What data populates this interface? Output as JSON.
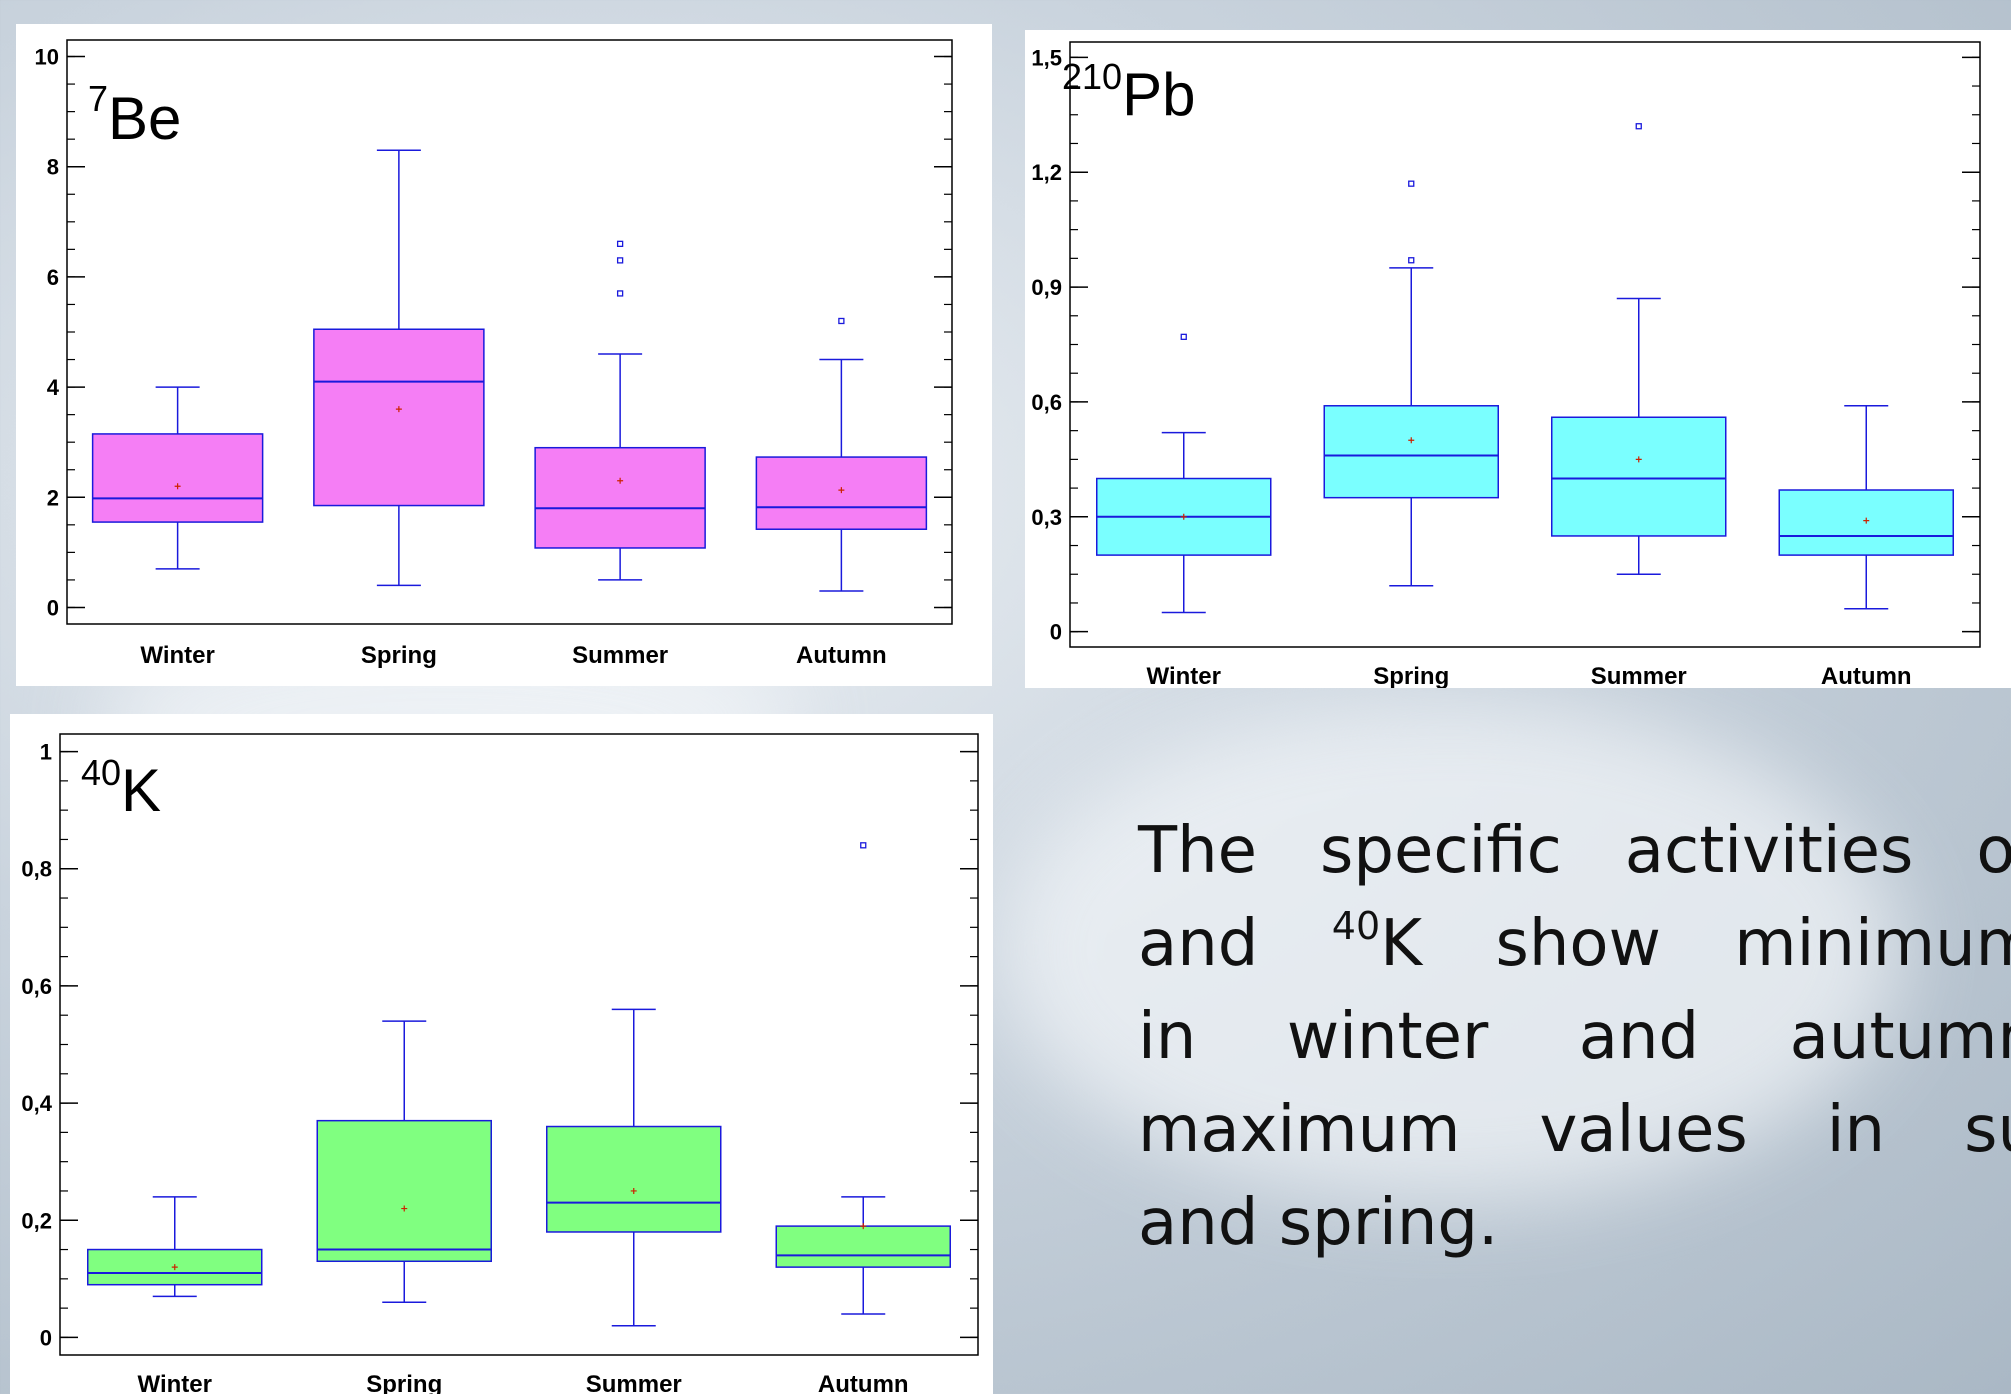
{
  "chart_data": [
    {
      "type": "boxplot",
      "panel": "be7",
      "isotope": {
        "mass": "7",
        "symbol": "Be"
      },
      "categories": [
        "Winter",
        "Spring",
        "Summer",
        "Autumn"
      ],
      "yticks": [
        "0",
        "2",
        "4",
        "6",
        "8",
        "10"
      ],
      "ytick_values": [
        0,
        2,
        4,
        6,
        8,
        10
      ],
      "ylim": [
        -0.3,
        10.3
      ],
      "minor_step": 0.5,
      "box_fill": "#f57ef5",
      "series": [
        {
          "whisker_low": 0.7,
          "q1": 1.55,
          "median": 1.98,
          "q3": 3.15,
          "whisker_high": 4.0,
          "mean": 2.2,
          "outliers": []
        },
        {
          "whisker_low": 0.4,
          "q1": 1.85,
          "median": 4.1,
          "q3": 5.05,
          "whisker_high": 8.3,
          "mean": 3.6,
          "outliers": []
        },
        {
          "whisker_low": 0.5,
          "q1": 1.08,
          "median": 1.8,
          "q3": 2.9,
          "whisker_high": 4.6,
          "mean": 2.3,
          "outliers": [
            5.7,
            6.3,
            6.6
          ]
        },
        {
          "whisker_low": 0.3,
          "q1": 1.42,
          "median": 1.82,
          "q3": 2.73,
          "whisker_high": 4.5,
          "mean": 2.13,
          "outliers": [
            5.2
          ]
        }
      ]
    },
    {
      "type": "boxplot",
      "panel": "pb210",
      "isotope": {
        "mass": "210",
        "symbol": "Pb"
      },
      "categories": [
        "Winter",
        "Spring",
        "Summer",
        "Autumn"
      ],
      "yticks": [
        "0",
        "0,3",
        "0,6",
        "0,9",
        "1,2",
        "1,5"
      ],
      "ytick_values": [
        0,
        0.3,
        0.6,
        0.9,
        1.2,
        1.5
      ],
      "ylim": [
        -0.04,
        1.54
      ],
      "minor_step": 0.075,
      "box_fill": "#7affff",
      "series": [
        {
          "whisker_low": 0.05,
          "q1": 0.2,
          "median": 0.3,
          "q3": 0.4,
          "whisker_high": 0.52,
          "mean": 0.3,
          "outliers": [
            0.77
          ]
        },
        {
          "whisker_low": 0.12,
          "q1": 0.35,
          "median": 0.46,
          "q3": 0.59,
          "whisker_high": 0.95,
          "mean": 0.5,
          "outliers": [
            0.97,
            1.17
          ]
        },
        {
          "whisker_low": 0.15,
          "q1": 0.25,
          "median": 0.4,
          "q3": 0.56,
          "whisker_high": 0.87,
          "mean": 0.45,
          "outliers": [
            1.32
          ]
        },
        {
          "whisker_low": 0.06,
          "q1": 0.2,
          "median": 0.25,
          "q3": 0.37,
          "whisker_high": 0.59,
          "mean": 0.29,
          "outliers": []
        }
      ]
    },
    {
      "type": "boxplot",
      "panel": "k40",
      "isotope": {
        "mass": "40",
        "symbol": "K"
      },
      "categories": [
        "Winter",
        "Spring",
        "Summer",
        "Autumn"
      ],
      "yticks": [
        "0",
        "0,2",
        "0,4",
        "0,6",
        "0,8",
        "1"
      ],
      "ytick_values": [
        0,
        0.2,
        0.4,
        0.6,
        0.8,
        1.0
      ],
      "ylim": [
        -0.03,
        1.03
      ],
      "minor_step": 0.05,
      "box_fill": "#80ff80",
      "series": [
        {
          "whisker_low": 0.07,
          "q1": 0.09,
          "median": 0.11,
          "q3": 0.15,
          "whisker_high": 0.24,
          "mean": 0.12,
          "outliers": []
        },
        {
          "whisker_low": 0.06,
          "q1": 0.13,
          "median": 0.15,
          "q3": 0.37,
          "whisker_high": 0.54,
          "mean": 0.22,
          "outliers": []
        },
        {
          "whisker_low": 0.02,
          "q1": 0.18,
          "median": 0.23,
          "q3": 0.36,
          "whisker_high": 0.56,
          "mean": 0.25,
          "outliers": []
        },
        {
          "whisker_low": 0.04,
          "q1": 0.12,
          "median": 0.14,
          "q3": 0.19,
          "whisker_high": 0.24,
          "mean": 0.19,
          "outliers": [
            0.84
          ]
        }
      ]
    }
  ],
  "description": {
    "lines": [
      {
        "pre": "The  specific  activities  of",
        "sup": "",
        "post": ""
      },
      {
        "pre": "and ",
        "sup": "40",
        "post": "K show minimum"
      },
      {
        "pre": "in   winter   and   autumn",
        "sup": "",
        "post": ""
      },
      {
        "pre": "maximum   values   in   su",
        "sup": "",
        "post": ""
      },
      {
        "pre": "and spring.",
        "sup": "",
        "post": ""
      }
    ]
  }
}
